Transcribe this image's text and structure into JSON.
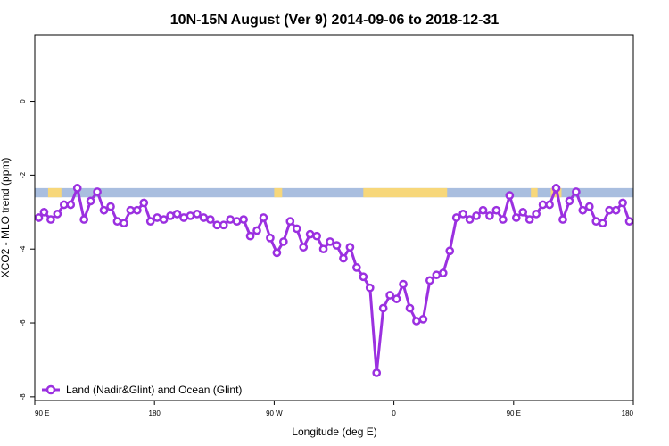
{
  "chart_data": {
    "type": "line",
    "title": "10N-15N August (Ver 9)   2014-09-06 to 2018-12-31",
    "xlabel": "Longitude (deg E)",
    "ylabel": "XCO2 - MLO trend (ppm)",
    "x_ticks": [
      {
        "value": 90,
        "label": "90 E"
      },
      {
        "value": 180,
        "label": "180"
      },
      {
        "value": 270,
        "label": "90 W"
      },
      {
        "value": 360,
        "label": "0"
      },
      {
        "value": 450,
        "label": "90 E"
      },
      {
        "value": 540,
        "label": "180"
      }
    ],
    "y_ticks": [
      {
        "value": -8,
        "label": "-8"
      },
      {
        "value": -6,
        "label": "-6"
      },
      {
        "value": -4,
        "label": "-4"
      },
      {
        "value": -2,
        "label": "-2"
      },
      {
        "value": 0,
        "label": "0"
      }
    ],
    "xlim": [
      90,
      540
    ],
    "ylim": [
      -8.1,
      1.8
    ],
    "grid": false,
    "legend_position": "bottom-left",
    "land_band": {
      "y_range": [
        -2.6,
        -2.35
      ],
      "ocean_color": "#a9bedf",
      "land_color": "#f7d77a",
      "land_segments": [
        [
          100,
          110
        ],
        [
          270,
          276
        ],
        [
          337,
          400
        ],
        [
          463,
          468
        ],
        [
          478,
          486
        ]
      ]
    },
    "series": [
      {
        "name": "Land (Nadir&Glint) and Ocean (Glint)",
        "color": "#9b30e0",
        "x": [
          93,
          97,
          102,
          107,
          112,
          117,
          122,
          127,
          132,
          137,
          142,
          147,
          152,
          157,
          162,
          167,
          172,
          177,
          182,
          187,
          192,
          197,
          202,
          207,
          212,
          217,
          222,
          227,
          232,
          237,
          242,
          247,
          252,
          257,
          262,
          267,
          272,
          277,
          282,
          287,
          292,
          297,
          302,
          307,
          312,
          317,
          322,
          327,
          332,
          337,
          342,
          347,
          352,
          357,
          362,
          367,
          372,
          377,
          382,
          387,
          392,
          397,
          402,
          407,
          412,
          417,
          422,
          427,
          432,
          437,
          442,
          447,
          452,
          457,
          462,
          467,
          472,
          477,
          482,
          487,
          492,
          497,
          502,
          507,
          512,
          517,
          522,
          527,
          532,
          537
        ],
        "y": [
          -3.15,
          -3.0,
          -3.2,
          -3.05,
          -2.8,
          -2.8,
          -2.35,
          -3.2,
          -2.7,
          -2.45,
          -2.95,
          -2.85,
          -3.25,
          -3.3,
          -2.95,
          -2.95,
          -2.75,
          -3.25,
          -3.15,
          -3.2,
          -3.1,
          -3.05,
          -3.15,
          -3.1,
          -3.05,
          -3.15,
          -3.2,
          -3.35,
          -3.35,
          -3.2,
          -3.25,
          -3.2,
          -3.65,
          -3.5,
          -3.15,
          -3.7,
          -4.1,
          -3.8,
          -3.25,
          -3.45,
          -3.95,
          -3.6,
          -3.65,
          -4.0,
          -3.8,
          -3.9,
          -4.25,
          -3.95,
          -4.5,
          -4.75,
          -5.05,
          -7.35,
          -5.6,
          -5.25,
          -5.35,
          -4.95,
          -5.6,
          -5.95,
          -5.9,
          -4.85,
          -4.7,
          -4.65,
          -4.05,
          -3.15,
          -3.05,
          -3.2,
          -3.1,
          -2.95,
          -3.1,
          -2.95,
          -3.2,
          -2.55,
          -3.15,
          -3.0,
          -3.2,
          -3.05,
          -2.8,
          -2.8,
          -2.35,
          -3.2,
          -2.7,
          -2.45,
          -2.95,
          -2.85,
          -3.25,
          -3.3,
          -2.95,
          -2.95,
          -2.75,
          -3.25
        ]
      }
    ]
  }
}
